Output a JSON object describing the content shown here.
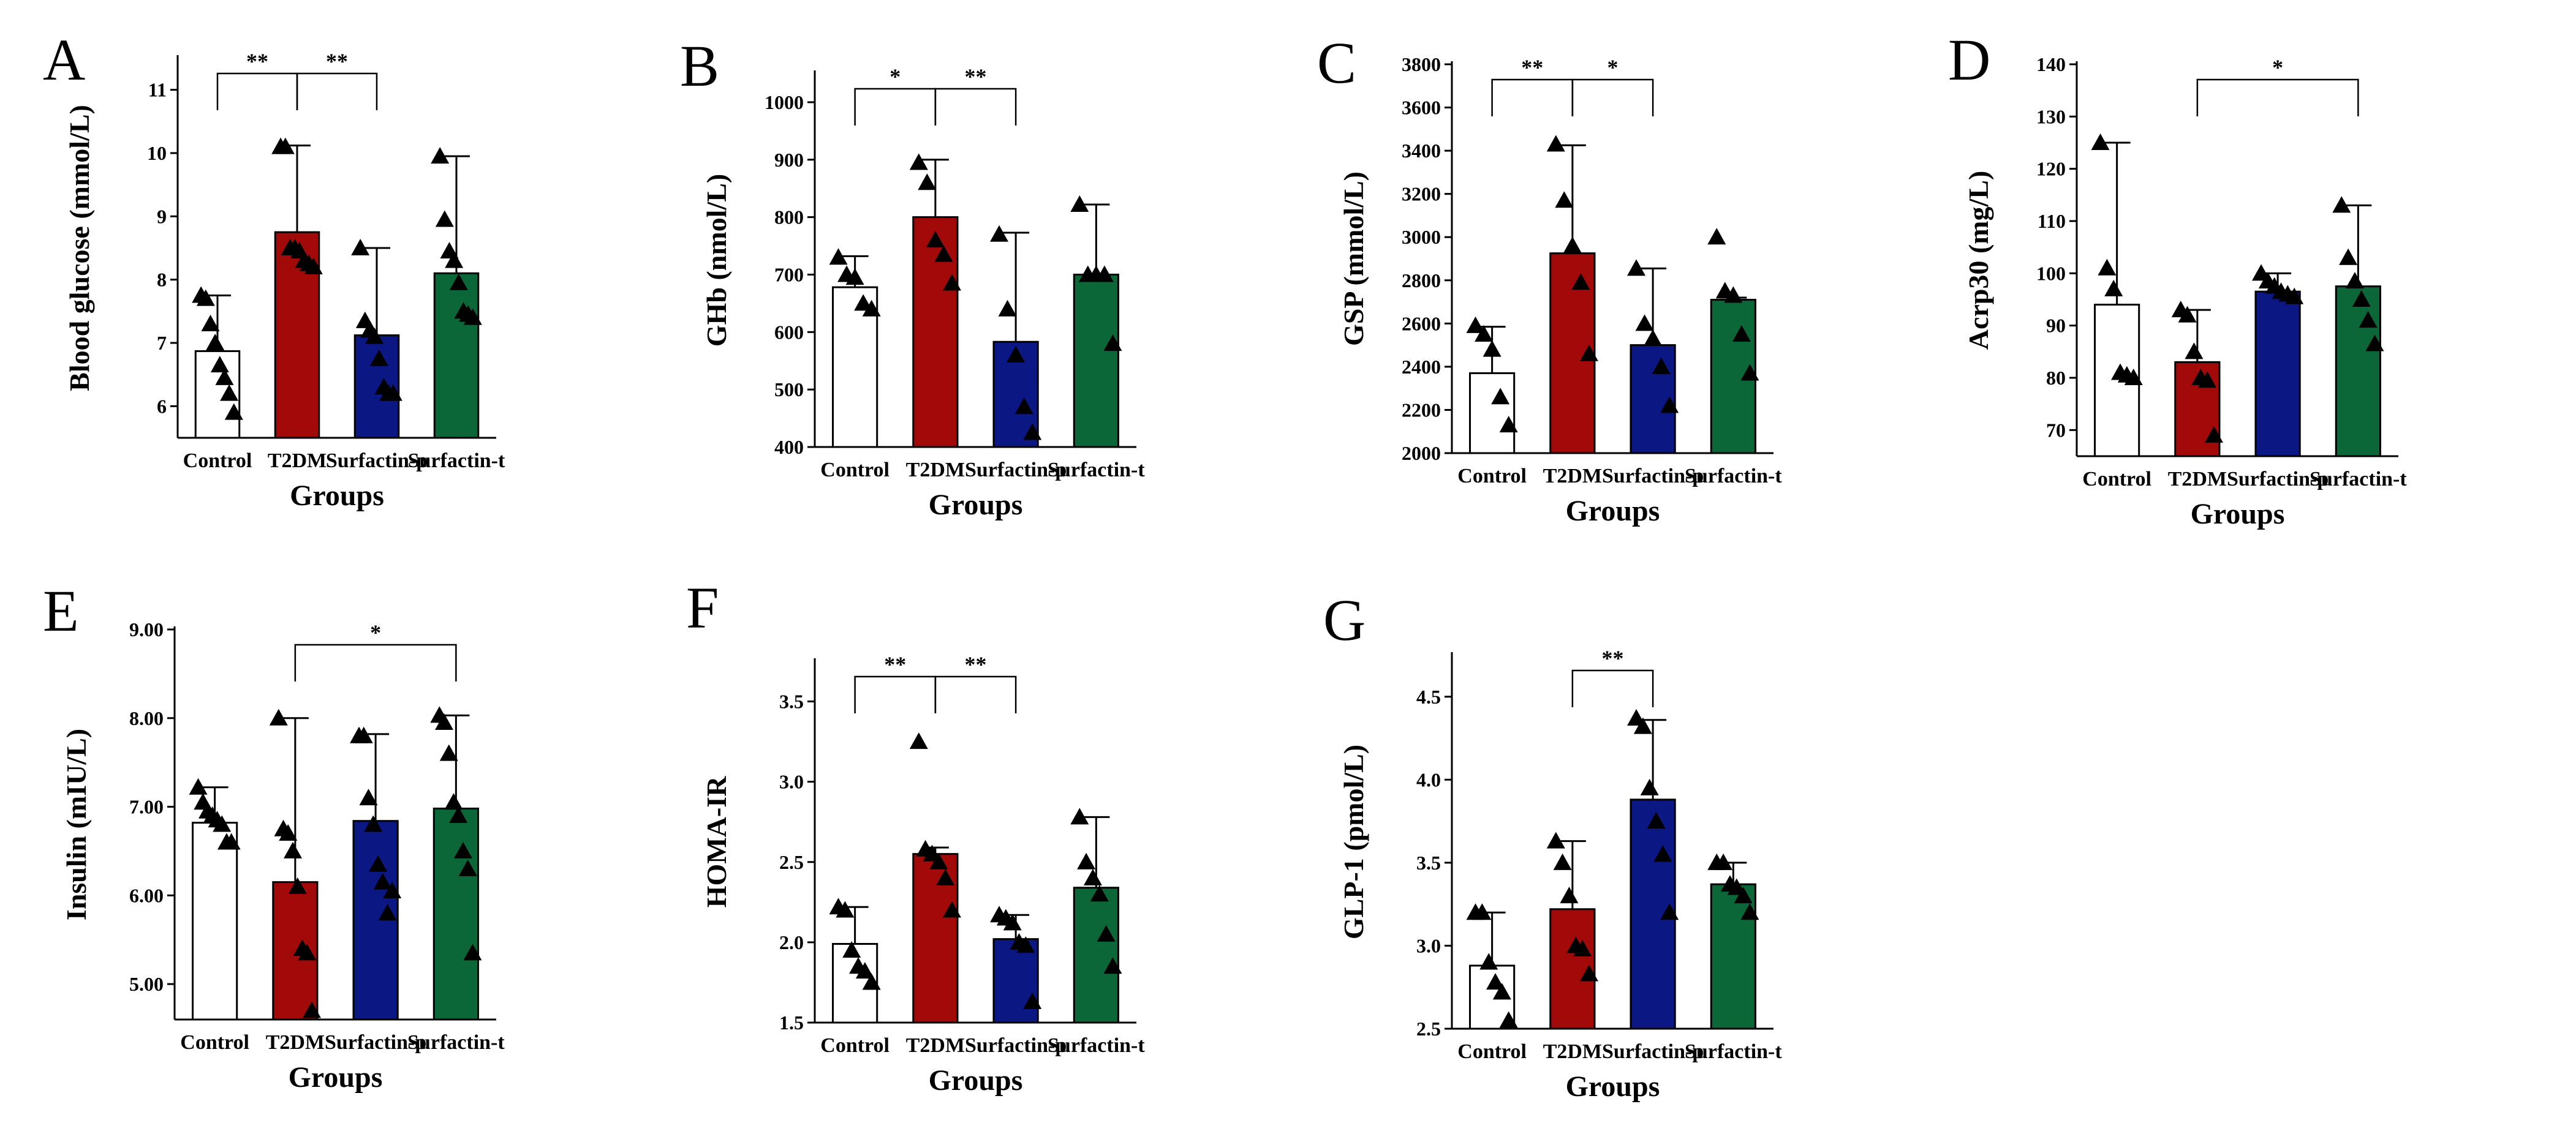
{
  "colors": {
    "Control": "#ffffff",
    "T2DM": "#a20a0a",
    "Surfactin-p": "#0b1782",
    "Surfactin-t": "#0b6638"
  },
  "chart_data": [
    {
      "panel": "A",
      "type": "bar",
      "xlabel": "Groups",
      "ylabel": "Blood glucose (mmol/L)",
      "categories": [
        "Control",
        "T2DM",
        "Surfactin-p",
        "Surfactin-t"
      ],
      "ylim": [
        5.5,
        11.5
      ],
      "yticks": [
        6,
        7,
        8,
        9,
        10,
        11
      ],
      "tick_labels": [
        "6",
        "7",
        "8",
        "9",
        "10",
        "11"
      ],
      "values": [
        6.87,
        8.75,
        7.12,
        8.1
      ],
      "error_upper": [
        7.75,
        10.12,
        8.5,
        9.95
      ],
      "points": [
        [
          7.75,
          7.7,
          7.3,
          7.0,
          6.65,
          6.45,
          6.2,
          5.9
        ],
        [
          10.1,
          10.1,
          8.5,
          8.5,
          8.45,
          8.3,
          8.25,
          8.2
        ],
        [
          8.5,
          7.35,
          7.2,
          7.1,
          6.75,
          6.3,
          6.2,
          6.2
        ],
        [
          9.95,
          8.95,
          8.45,
          8.3,
          7.95,
          7.5,
          7.45,
          7.4
        ]
      ],
      "significance": [
        {
          "from": 0,
          "to": 1,
          "label": "**"
        },
        {
          "from": 1,
          "to": 2,
          "label": "**"
        }
      ]
    },
    {
      "panel": "B",
      "type": "bar",
      "xlabel": "Groups",
      "ylabel": "GHb (nmol/L)",
      "categories": [
        "Control",
        "T2DM",
        "Surfactin-p",
        "Surfactin-t"
      ],
      "ylim": [
        400,
        1050
      ],
      "yticks": [
        400,
        500,
        600,
        700,
        800,
        900,
        1000
      ],
      "tick_labels": [
        "400",
        "500",
        "600",
        "700",
        "800",
        "900",
        "1000"
      ],
      "values": [
        678,
        800,
        583,
        700
      ],
      "error_upper": [
        732,
        900,
        773,
        822
      ],
      "points": [
        [
          730,
          700,
          695,
          650,
          640
        ],
        [
          895,
          860,
          760,
          735,
          685
        ],
        [
          770,
          640,
          560,
          470,
          425
        ],
        [
          822,
          700,
          700,
          700,
          580
        ]
      ],
      "significance": [
        {
          "from": 0,
          "to": 1,
          "label": "*"
        },
        {
          "from": 1,
          "to": 2,
          "label": "**"
        }
      ]
    },
    {
      "panel": "C",
      "type": "bar",
      "xlabel": "Groups",
      "ylabel": "GSP (mmol/L)",
      "categories": [
        "Control",
        "T2DM",
        "Surfactin-p",
        "Surfactin-t"
      ],
      "ylim": [
        2000,
        3800
      ],
      "yticks": [
        2000,
        2200,
        2400,
        2600,
        2800,
        3000,
        3200,
        3400,
        3600,
        3800
      ],
      "tick_labels": [
        "2000",
        "2200",
        "2400",
        "2600",
        "2800",
        "3000",
        "3200",
        "3400",
        "3600",
        "3800"
      ],
      "values": [
        2370,
        2925,
        2500,
        2710
      ],
      "error_upper": [
        2585,
        3425,
        2855,
        2720
      ],
      "points": [
        [
          2590,
          2550,
          2480,
          2260,
          2130
        ],
        [
          3430,
          3170,
          2960,
          2790,
          2460
        ],
        [
          2855,
          2600,
          2530,
          2400,
          2220
        ],
        [
          3000,
          2750,
          2730,
          2550,
          2370
        ]
      ],
      "significance": [
        {
          "from": 0,
          "to": 1,
          "label": "**"
        },
        {
          "from": 1,
          "to": 2,
          "label": "*"
        }
      ]
    },
    {
      "panel": "D",
      "type": "bar",
      "xlabel": "Groups",
      "ylabel": "Acrp30 (mg/L)",
      "categories": [
        "Control",
        "T2DM",
        "Surfactin-p",
        "Surfactin-t"
      ],
      "ylim": [
        65,
        140
      ],
      "yticks": [
        70,
        80,
        90,
        100,
        110,
        120,
        130,
        140
      ],
      "tick_labels": [
        "70",
        "80",
        "90",
        "100",
        "110",
        "120",
        "130",
        "140"
      ],
      "values": [
        94,
        83,
        96.5,
        97.5
      ],
      "error_upper": [
        125,
        93,
        100,
        113
      ],
      "points": [
        [
          125,
          101,
          97,
          81,
          80.5,
          80
        ],
        [
          93,
          92,
          85,
          80,
          79.5,
          69
        ],
        [
          100,
          98.5,
          97.5,
          96.5,
          96,
          95.5
        ],
        [
          113,
          103,
          98.5,
          95,
          91,
          86.5
        ]
      ],
      "significance": [
        {
          "from": 1,
          "to": 3,
          "label": "*"
        }
      ]
    },
    {
      "panel": "E",
      "type": "bar",
      "xlabel": "Groups",
      "ylabel": "Insulin (mIU/L)",
      "categories": [
        "Control",
        "T2DM",
        "Surfactin-p",
        "Surfactin-t"
      ],
      "ylim": [
        4.6,
        9.0
      ],
      "yticks": [
        5,
        6,
        7,
        8,
        9
      ],
      "tick_labels": [
        "5.00",
        "6.00",
        "7.00",
        "8.00",
        "9.00"
      ],
      "values": [
        6.82,
        6.15,
        6.84,
        6.98
      ],
      "error_upper": [
        7.22,
        8.0,
        7.82,
        8.03
      ],
      "points": [
        [
          7.22,
          7.05,
          6.95,
          6.9,
          6.85,
          6.8,
          6.6,
          6.6
        ],
        [
          8.0,
          6.75,
          6.7,
          6.5,
          6.1,
          5.4,
          5.35,
          4.7
        ],
        [
          7.8,
          7.8,
          7.1,
          6.8,
          6.35,
          6.15,
          5.8,
          6.05
        ],
        [
          8.03,
          7.95,
          7.6,
          7.05,
          6.9,
          6.5,
          6.3,
          5.35
        ]
      ],
      "significance": [
        {
          "from": 1,
          "to": 3,
          "label": "*"
        }
      ]
    },
    {
      "panel": "F",
      "type": "bar",
      "xlabel": "Groups",
      "ylabel": "HOMA-IR",
      "categories": [
        "Control",
        "T2DM",
        "Surfactin-p",
        "Surfactin-t"
      ],
      "ylim": [
        1.5,
        3.75
      ],
      "yticks": [
        1.5,
        2.0,
        2.5,
        3.0,
        3.5
      ],
      "tick_labels": [
        "1.5",
        "2.0",
        "2.5",
        "3.0",
        "3.5"
      ],
      "values": [
        1.99,
        2.55,
        2.02,
        2.34
      ],
      "error_upper": [
        2.22,
        2.59,
        2.17,
        2.78
      ],
      "points": [
        [
          2.22,
          2.2,
          1.95,
          1.85,
          1.82,
          1.75
        ],
        [
          3.25,
          2.58,
          2.55,
          2.5,
          2.4,
          2.2
        ],
        [
          2.17,
          2.15,
          2.12,
          2.0,
          1.98,
          1.63
        ],
        [
          2.78,
          2.5,
          2.4,
          2.3,
          2.05,
          1.85
        ]
      ],
      "significance": [
        {
          "from": 0,
          "to": 1,
          "label": "**"
        },
        {
          "from": 1,
          "to": 2,
          "label": "**"
        }
      ]
    },
    {
      "panel": "G",
      "type": "bar",
      "xlabel": "Groups",
      "ylabel": "GLP-1 (pmol/L)",
      "categories": [
        "Control",
        "T2DM",
        "Surfactin-p",
        "Surfactin-t"
      ],
      "ylim": [
        2.5,
        4.75
      ],
      "yticks": [
        2.5,
        3.0,
        3.5,
        4.0,
        4.5
      ],
      "tick_labels": [
        "2.5",
        "3.0",
        "3.5",
        "4.0",
        "4.5"
      ],
      "values": [
        2.88,
        3.22,
        3.88,
        3.37
      ],
      "error_upper": [
        3.2,
        3.63,
        4.36,
        3.5
      ],
      "points": [
        [
          3.2,
          3.2,
          2.9,
          2.78,
          2.72,
          2.55
        ],
        [
          3.63,
          3.5,
          3.3,
          3.0,
          2.98,
          2.83
        ],
        [
          4.37,
          4.32,
          3.95,
          3.75,
          3.55,
          3.2
        ],
        [
          3.5,
          3.5,
          3.37,
          3.35,
          3.3,
          3.2
        ]
      ],
      "significance": [
        {
          "from": 1,
          "to": 2,
          "label": "**"
        }
      ]
    }
  ]
}
